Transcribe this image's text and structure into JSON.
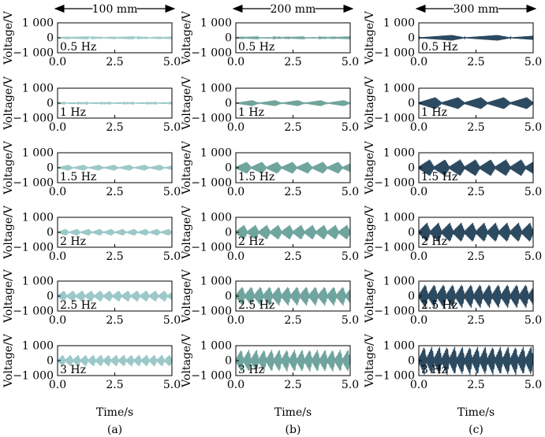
{
  "columns": [
    {
      "span_label": "100 mm",
      "panel_label": "(a)",
      "color": "#9cc8c8"
    },
    {
      "span_label": "200 mm",
      "panel_label": "(b)",
      "color": "#70a49e"
    },
    {
      "span_label": "300 mm",
      "panel_label": "(c)",
      "color": "#2c4a60"
    }
  ],
  "rows": [
    "0.5 Hz",
    "1 Hz",
    "1.5 Hz",
    "2 Hz",
    "2.5 Hz",
    "3 Hz"
  ],
  "axes": {
    "xlabel": "Time/s",
    "ylabel": "Voltage/V",
    "xticks": [
      "0.0",
      "2.5",
      "5.0"
    ],
    "yticks": [
      "1 000",
      "0",
      "−1 000"
    ]
  },
  "chart_data": {
    "type": "line",
    "layout": "6 rows (frequency) x 3 columns (span)",
    "xlim": [
      0,
      5
    ],
    "ylim": [
      -1000,
      1000
    ],
    "frequencies_hz": [
      0.5,
      1,
      1.5,
      2,
      2.5,
      3
    ],
    "x_tick_values": [
      0,
      2.5,
      5
    ],
    "y_tick_values": [
      1000,
      0,
      -1000
    ],
    "peak_amplitude_v": [
      [
        35,
        45,
        190
      ],
      [
        60,
        200,
        400
      ],
      [
        200,
        400,
        560
      ],
      [
        230,
        500,
        650
      ],
      [
        380,
        650,
        800
      ],
      [
        400,
        750,
        960
      ]
    ],
    "waveform": "burst voltage signal with one triangular envelope per excitation period"
  }
}
